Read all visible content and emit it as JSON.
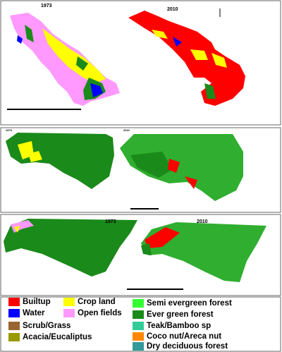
{
  "panels": [
    {
      "left_year": "1973",
      "right_year": "2010"
    },
    {
      "left_year": "1973",
      "right_year": "2010"
    },
    {
      "left_year": "1973",
      "right_year": "2010"
    }
  ],
  "legend": [
    {
      "label": "Builtup",
      "color": "#ff0000"
    },
    {
      "label": "Water",
      "color": "#0000ff"
    },
    {
      "label": "Crop land",
      "color": "#ffff00"
    },
    {
      "label": "Open fields",
      "color": "#ff99ff"
    },
    {
      "label": "Semi evergreen forest",
      "color": "#33ff33"
    },
    {
      "label": "Ever green forest",
      "color": "#1a8a1a"
    },
    {
      "label": "Scrub/Grass",
      "color": "#996633"
    },
    {
      "label": "Acacia/Eucaliptus",
      "color": "#999900"
    },
    {
      "label": "Teak/Bamboo sp",
      "color": "#33cc99"
    },
    {
      "label": "Coco nut/Areca nut",
      "color": "#ff8800"
    },
    {
      "label": "Dry deciduous forest",
      "color": "#339999"
    }
  ]
}
